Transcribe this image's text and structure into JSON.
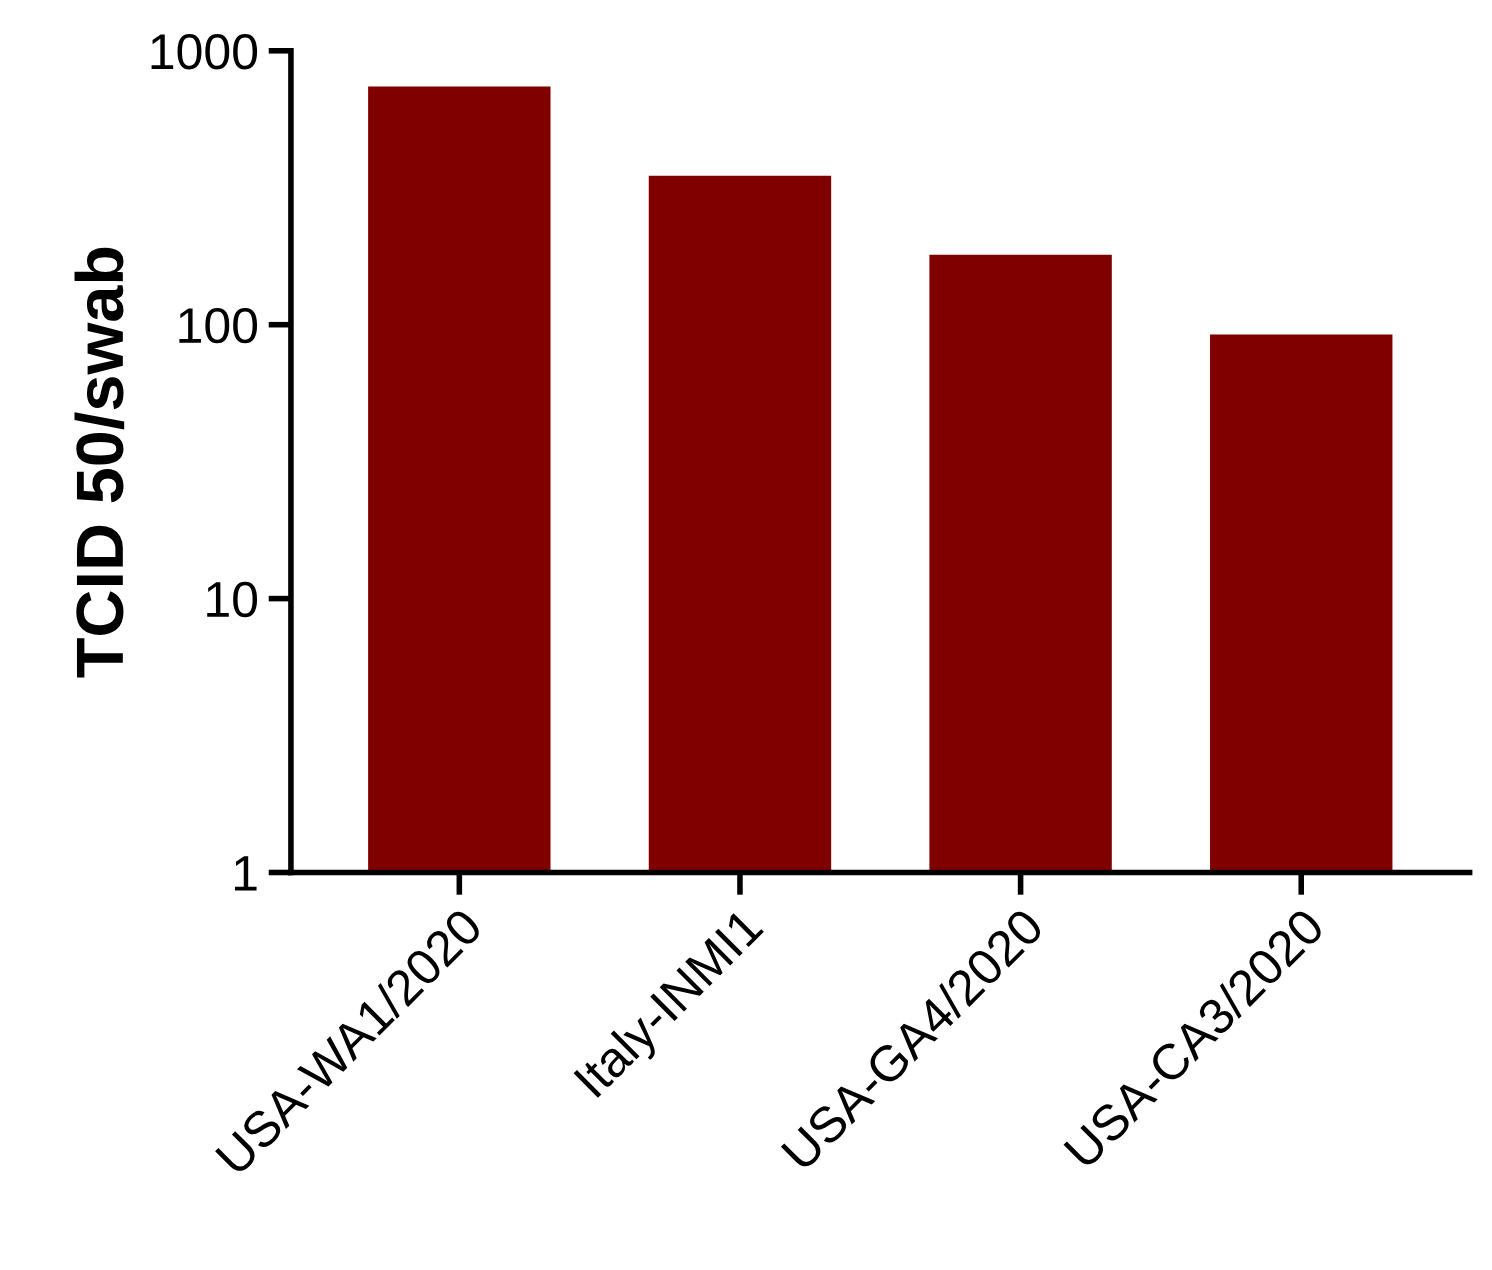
{
  "chart_data": {
    "type": "bar",
    "ylabel": "TCID 50/swab",
    "categories": [
      "USA-WA1/2020",
      "Italy-INMI1",
      "USA-GA4/2020",
      "USA-CA3/2020"
    ],
    "values": [
      740,
      350,
      180,
      92
    ],
    "color": "#800000",
    "log": true,
    "ylim": [
      1,
      1000
    ],
    "yticks": [
      1,
      10,
      100,
      1000
    ],
    "grid": false,
    "legend": false
  }
}
